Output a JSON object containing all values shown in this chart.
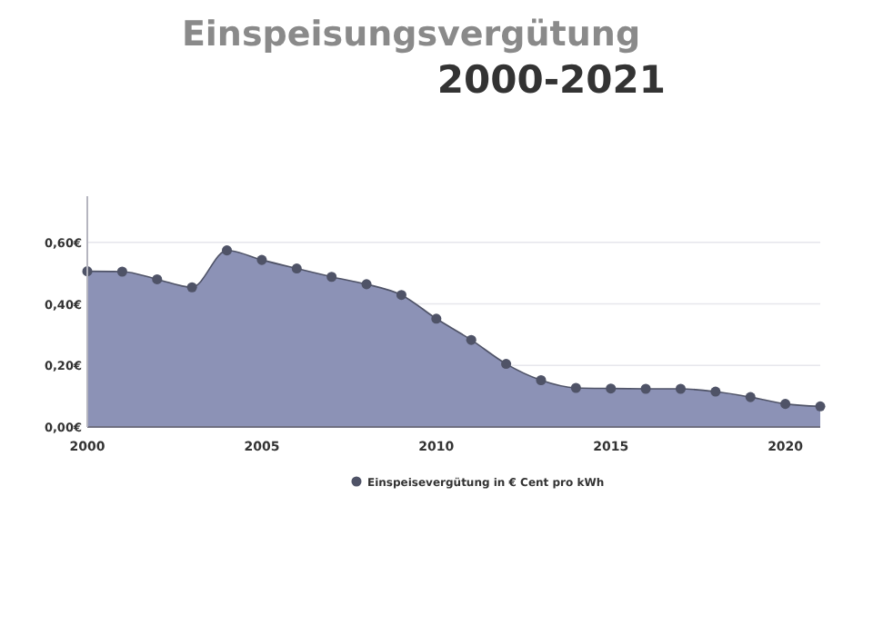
{
  "chart_data": {
    "type": "area",
    "title": "Einspeisungsvergütung",
    "subtitle": "2000-2021",
    "x": [
      2000,
      2001,
      2002,
      2003,
      2004,
      2005,
      2006,
      2007,
      2008,
      2009,
      2010,
      2011,
      2012,
      2013,
      2014,
      2015,
      2016,
      2017,
      2018,
      2019,
      2020,
      2021
    ],
    "series": [
      {
        "name": "Einspeisevergütung in € Cent pro kWh",
        "color": "#8c92b6",
        "values": [
          0.506,
          0.505,
          0.48,
          0.454,
          0.574,
          0.543,
          0.515,
          0.488,
          0.464,
          0.429,
          0.352,
          0.283,
          0.205,
          0.152,
          0.127,
          0.125,
          0.124,
          0.124,
          0.115,
          0.097,
          0.075,
          0.067
        ]
      }
    ],
    "xlim": [
      2000,
      2021
    ],
    "xticks": [
      2000,
      2005,
      2010,
      2015,
      2020
    ],
    "ylim": [
      0,
      0.75
    ],
    "yticks": [
      {
        "value": 0,
        "label": "0,00€"
      },
      {
        "value": 0.2,
        "label": "0,20€"
      },
      {
        "value": 0.4,
        "label": "0,40€"
      },
      {
        "value": 0.6,
        "label": "0,60€"
      }
    ],
    "grid": "y",
    "legend": "bottom",
    "marker": "circle"
  }
}
